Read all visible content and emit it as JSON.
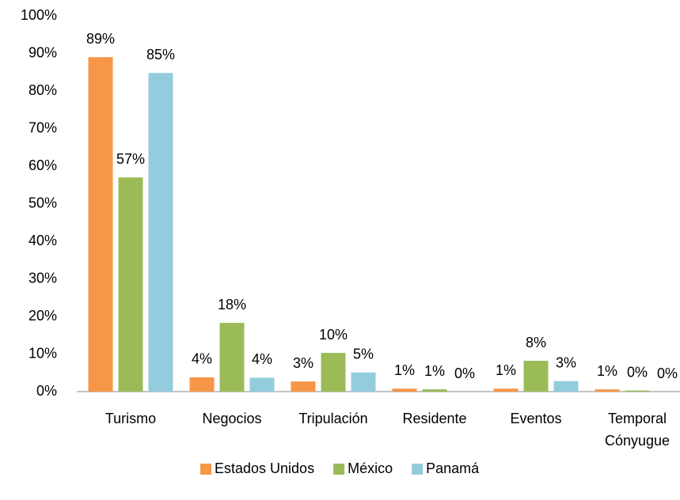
{
  "chart_data": {
    "type": "bar",
    "categories": [
      "Turismo",
      "Negocios",
      "Tripulación",
      "Residente",
      "Eventos",
      "Temporal Cónyugue"
    ],
    "series": [
      {
        "name": "Estados Unidos",
        "color": "#f79646",
        "values": [
          89,
          3.8,
          2.7,
          0.8,
          0.8,
          0.6
        ],
        "value_labels": [
          "89%",
          "4%",
          "3%",
          "1%",
          "1%",
          "1%"
        ]
      },
      {
        "name": "México",
        "color": "#9bbb59",
        "values": [
          57,
          18.3,
          10.3,
          0.6,
          8.2,
          0.3
        ],
        "value_labels": [
          "57%",
          "18%",
          "10%",
          "1%",
          "8%",
          "0%"
        ]
      },
      {
        "name": "Panamá",
        "color": "#93cddd",
        "values": [
          84.8,
          3.7,
          5.1,
          0,
          2.8,
          0
        ],
        "value_labels": [
          "85%",
          "4%",
          "5%",
          "0%",
          "3%",
          "0%"
        ]
      }
    ],
    "ylim": [
      0,
      100
    ],
    "yticks": [
      {
        "value": 0,
        "label": "0%"
      },
      {
        "value": 10,
        "label": "10%"
      },
      {
        "value": 20,
        "label": "20%"
      },
      {
        "value": 30,
        "label": "30%"
      },
      {
        "value": 40,
        "label": "40%"
      },
      {
        "value": 50,
        "label": "50%"
      },
      {
        "value": 60,
        "label": "60%"
      },
      {
        "value": 70,
        "label": "70%"
      },
      {
        "value": 80,
        "label": "80%"
      },
      {
        "value": 90,
        "label": "90%"
      },
      {
        "value": 100,
        "label": "100%"
      }
    ],
    "grid": false,
    "legend": "bottom"
  }
}
